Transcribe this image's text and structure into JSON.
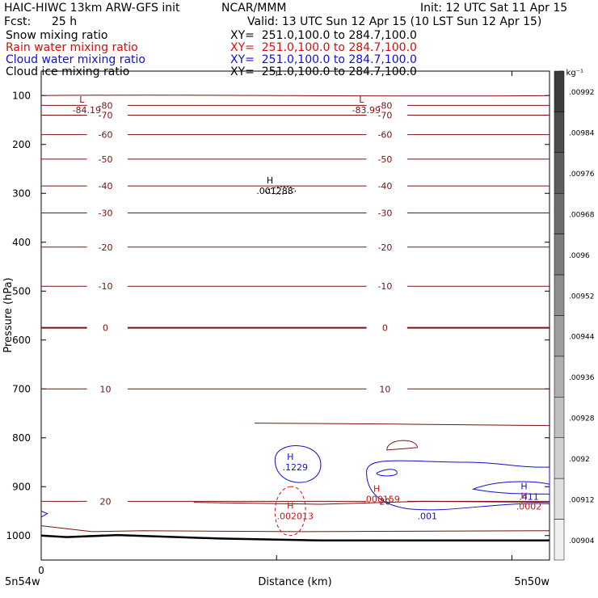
{
  "header": {
    "title": "HAIC-HIWC 13km ARW-GFS init",
    "center": "NCAR/MMM",
    "init": "Init: 12 UTC Sat 11 Apr 15",
    "fcst_label": "Fcst:",
    "fcst_value": "25 h",
    "valid": "Valid: 13 UTC Sun 12 Apr 15 (10 LST Sun 12 Apr 15)"
  },
  "fields": [
    {
      "name": "Snow mixing ratio",
      "xy": "XY=  251.0,100.0 to 284.7,100.0",
      "color": "#000000"
    },
    {
      "name": "Rain water mixing ratio",
      "xy": "XY=  251.0,100.0 to 284.7,100.0",
      "color": "#d01010"
    },
    {
      "name": "Cloud water mixing ratio",
      "xy": "XY=  251.0,100.0 to 284.7,100.0",
      "color": "#1010d0"
    },
    {
      "name": "Cloud ice mixing ratio",
      "xy": "XY=  251.0,100.0 to 284.7,100.0",
      "color": "#000000"
    }
  ],
  "chart_data": {
    "type": "contour",
    "xlabel": "Distance (km)",
    "ylabel": "Pressure (hPa)",
    "xlim": [
      0,
      1
    ],
    "ylim": [
      1050,
      50
    ],
    "x_ticks": [
      {
        "x": 0,
        "label": "0"
      },
      {
        "x": 0.463,
        "label": ""
      },
      {
        "x": 0.926,
        "label": ""
      }
    ],
    "x_endpoint_labels": {
      "left": "5n54w",
      "right": "5n50w"
    },
    "y_ticks": [
      100,
      200,
      300,
      400,
      500,
      600,
      700,
      800,
      900,
      1000
    ],
    "temperature_isotherms": {
      "color": "#7a1010",
      "lines": [
        {
          "p": 100,
          "label": ""
        },
        {
          "p": 120,
          "label": "-80"
        },
        {
          "p": 140,
          "label": "-70"
        },
        {
          "p": 180,
          "label": "-60"
        },
        {
          "p": 230,
          "label": "-50"
        },
        {
          "p": 285,
          "label": "-40"
        },
        {
          "p": 340,
          "label": "-30"
        },
        {
          "p": 410,
          "label": "-20"
        },
        {
          "p": 490,
          "label": "-10"
        },
        {
          "p": 575,
          "label": "0"
        },
        {
          "p": 700,
          "label": "10"
        },
        {
          "p": 930,
          "label": "20"
        }
      ],
      "extrema": [
        {
          "x": 0.08,
          "p": 88,
          "type": "L",
          "value": "-84.19"
        },
        {
          "x": 0.63,
          "p": 88,
          "type": "L",
          "value": "-83.99"
        }
      ]
    },
    "maxima": [
      {
        "x": 0.45,
        "p": 290,
        "type": "H",
        "value": ".001288",
        "color": "#000000"
      },
      {
        "x": 0.49,
        "p": 855,
        "type": "H",
        "value": ".1229",
        "color": "#1010d0"
      },
      {
        "x": 0.49,
        "p": 955,
        "type": "H",
        "value": ".002013",
        "color": "#d01010"
      },
      {
        "x": 0.66,
        "p": 920,
        "type": "H",
        "value": ".000159",
        "color": "#d01010"
      },
      {
        "x": 0.75,
        "p": 955,
        "type": "",
        "value": ".001",
        "color": "#1010d0"
      },
      {
        "x": 0.95,
        "p": 915,
        "type": "H",
        "value": ".411",
        "color": "#1010d0"
      },
      {
        "x": 0.95,
        "p": 935,
        "type": "H",
        "value": ".0002",
        "color": "#d01010"
      }
    ],
    "colorbar": {
      "unit": "g kg⁻¹",
      "labels": [
        ".00992",
        ".00984",
        ".00976",
        ".00968",
        ".0096",
        ".00952",
        ".00944",
        ".00936",
        ".00928",
        ".0092",
        ".00912",
        ".00904"
      ]
    }
  }
}
